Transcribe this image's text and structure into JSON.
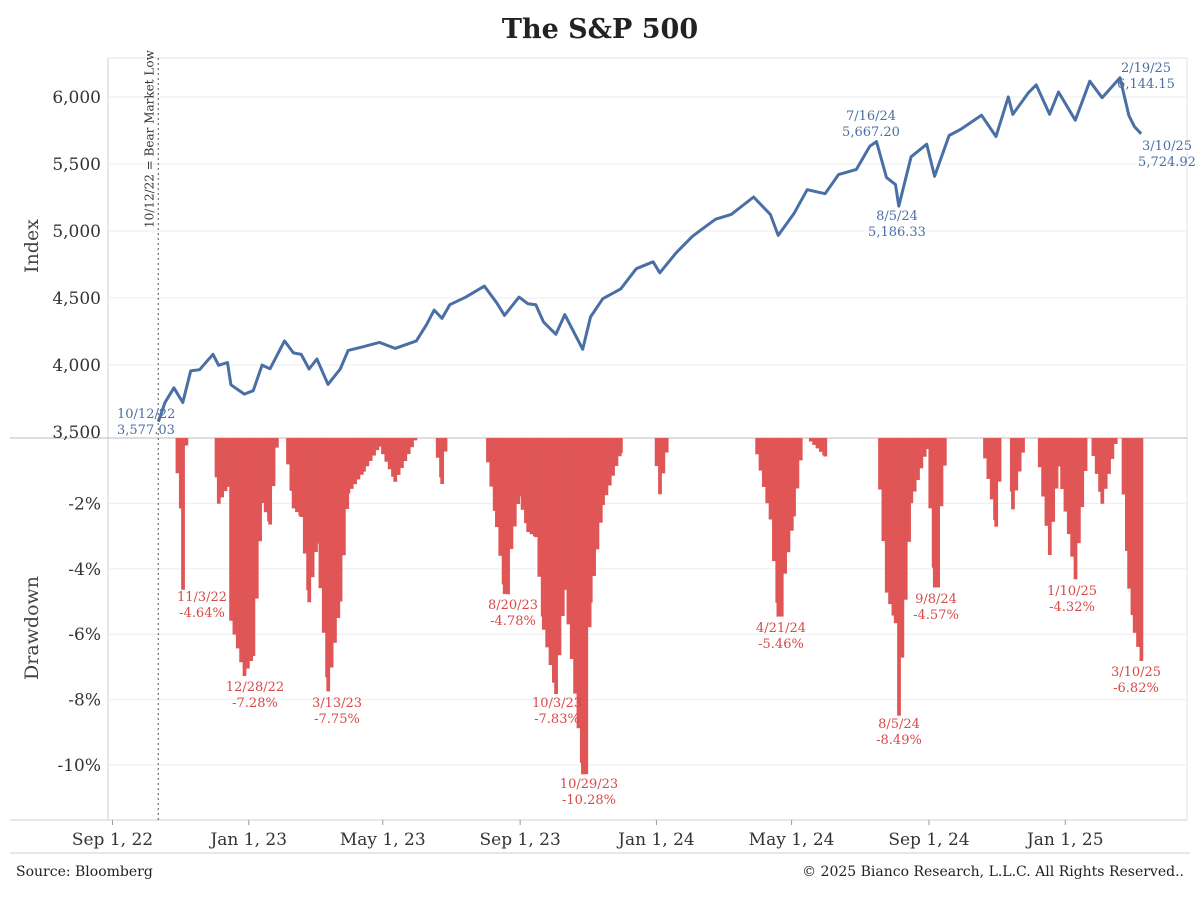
{
  "page": {
    "title": "The S&P 500",
    "source": "Source: Bloomberg",
    "copyright": "© 2025 Bianco Research, L.L.C. All Rights Reserved.."
  },
  "colors": {
    "index_line": "#4a6fa5",
    "drawdown": "#e05555",
    "annotation_red": "#d94848",
    "annotation_blue": "#4a6fa5"
  },
  "chart_data": [
    {
      "type": "line",
      "title": "The S&P 500",
      "ylabel": "Index",
      "xlabel": "",
      "ylim": [
        3500,
        6300
      ],
      "yticks": [
        3500,
        4000,
        4500,
        5000,
        5500,
        6000
      ],
      "ytick_labels": [
        "3,500",
        "4,000",
        "4,500",
        "5,000",
        "5,500",
        "6,000"
      ],
      "x_ticks": [
        "Sep 1, 22",
        "Jan 1, 23",
        "May 1, 23",
        "Sep 1, 23",
        "Jan 1, 24",
        "May 1, 24",
        "Sep 1, 24",
        "Jan 1, 25"
      ],
      "x_tick_dates": [
        "2022-09-01",
        "2023-01-01",
        "2023-05-01",
        "2023-09-01",
        "2024-01-01",
        "2024-05-01",
        "2024-09-01",
        "2025-01-01"
      ],
      "xlim": [
        "2022-08-28",
        "2025-04-20"
      ],
      "series": [
        {
          "points": [
            [
              "2022-10-12",
              3577
            ],
            [
              "2022-10-18",
              3720
            ],
            [
              "2022-10-26",
              3830
            ],
            [
              "2022-11-03",
              3720
            ],
            [
              "2022-11-10",
              3956
            ],
            [
              "2022-11-18",
              3965
            ],
            [
              "2022-11-30",
              4080
            ],
            [
              "2022-12-05",
              3998
            ],
            [
              "2022-12-13",
              4019
            ],
            [
              "2022-12-16",
              3852
            ],
            [
              "2022-12-28",
              3783
            ],
            [
              "2023-01-05",
              3808
            ],
            [
              "2023-01-13",
              3999
            ],
            [
              "2023-01-20",
              3972
            ],
            [
              "2023-02-02",
              4180
            ],
            [
              "2023-02-10",
              4090
            ],
            [
              "2023-02-17",
              4079
            ],
            [
              "2023-02-24",
              3970
            ],
            [
              "2023-03-03",
              4045
            ],
            [
              "2023-03-13",
              3855
            ],
            [
              "2023-03-24",
              3971
            ],
            [
              "2023-03-31",
              4109
            ],
            [
              "2023-04-14",
              4137
            ],
            [
              "2023-04-28",
              4169
            ],
            [
              "2023-05-12",
              4124
            ],
            [
              "2023-05-31",
              4180
            ],
            [
              "2023-06-09",
              4298
            ],
            [
              "2023-06-16",
              4410
            ],
            [
              "2023-06-23",
              4348
            ],
            [
              "2023-06-30",
              4450
            ],
            [
              "2023-07-14",
              4505
            ],
            [
              "2023-07-31",
              4589
            ],
            [
              "2023-08-11",
              4464
            ],
            [
              "2023-08-18",
              4370
            ],
            [
              "2023-08-31",
              4507
            ],
            [
              "2023-09-08",
              4457
            ],
            [
              "2023-09-15",
              4450
            ],
            [
              "2023-09-22",
              4320
            ],
            [
              "2023-10-03",
              4229
            ],
            [
              "2023-10-11",
              4376
            ],
            [
              "2023-10-27",
              4117
            ],
            [
              "2023-11-03",
              4358
            ],
            [
              "2023-11-14",
              4495
            ],
            [
              "2023-11-30",
              4568
            ],
            [
              "2023-12-14",
              4719
            ],
            [
              "2023-12-29",
              4770
            ],
            [
              "2024-01-04",
              4688
            ],
            [
              "2024-01-19",
              4840
            ],
            [
              "2024-02-02",
              4958
            ],
            [
              "2024-02-12",
              5021
            ],
            [
              "2024-02-23",
              5088
            ],
            [
              "2024-03-08",
              5124
            ],
            [
              "2024-03-28",
              5254
            ],
            [
              "2024-04-12",
              5123
            ],
            [
              "2024-04-19",
              4967
            ],
            [
              "2024-05-03",
              5128
            ],
            [
              "2024-05-15",
              5308
            ],
            [
              "2024-05-31",
              5278
            ],
            [
              "2024-06-12",
              5421
            ],
            [
              "2024-06-28",
              5460
            ],
            [
              "2024-07-10",
              5633
            ],
            [
              "2024-07-16",
              5667
            ],
            [
              "2024-07-25",
              5399
            ],
            [
              "2024-08-02",
              5346
            ],
            [
              "2024-08-05",
              5186
            ],
            [
              "2024-08-16",
              5554
            ],
            [
              "2024-08-30",
              5648
            ],
            [
              "2024-09-06",
              5408
            ],
            [
              "2024-09-19",
              5713
            ],
            [
              "2024-09-30",
              5762
            ],
            [
              "2024-10-18",
              5864
            ],
            [
              "2024-10-31",
              5705
            ],
            [
              "2024-11-11",
              6001
            ],
            [
              "2024-11-15",
              5870
            ],
            [
              "2024-11-29",
              6032
            ],
            [
              "2024-12-06",
              6090
            ],
            [
              "2024-12-18",
              5872
            ],
            [
              "2024-12-26",
              6037
            ],
            [
              "2025-01-10",
              5827
            ],
            [
              "2025-01-23",
              6118
            ],
            [
              "2025-02-03",
              5995
            ],
            [
              "2025-02-19",
              6144
            ],
            [
              "2025-02-27",
              5861
            ],
            [
              "2025-03-04",
              5778
            ],
            [
              "2025-03-10",
              5725
            ]
          ]
        }
      ],
      "vline": {
        "date": "2022-10-12",
        "label": "10/12/22 = Bear Market Low"
      },
      "annotations": [
        {
          "date": "10/12/22",
          "value": "3,577.03"
        },
        {
          "date": "7/16/24",
          "value": "5,667.20"
        },
        {
          "date": "8/5/24",
          "value": "5,186.33"
        },
        {
          "date": "2/19/25",
          "value": "6,144.15"
        },
        {
          "date": "3/10/25",
          "value": "5,724.92"
        }
      ]
    },
    {
      "type": "bar",
      "ylabel": "Drawdown",
      "ylim": [
        -11.5,
        0
      ],
      "yticks": [
        -2,
        -4,
        -6,
        -8,
        -10
      ],
      "ytick_labels": [
        "-2%",
        "-4%",
        "-6%",
        "-8%",
        "-10%"
      ],
      "troughs": [
        [
          "2022-11-03",
          -4.64
        ],
        [
          "2022-12-28",
          -7.28
        ],
        [
          "2023-03-13",
          -7.75
        ],
        [
          "2023-08-20",
          -4.78
        ],
        [
          "2023-10-03",
          -7.83
        ],
        [
          "2023-10-29",
          -10.28
        ],
        [
          "2024-04-21",
          -5.46
        ],
        [
          "2024-08-05",
          -8.49
        ],
        [
          "2024-09-08",
          -4.57
        ],
        [
          "2025-01-10",
          -4.32
        ],
        [
          "2025-03-10",
          -6.82
        ]
      ],
      "annotations": [
        {
          "date": "11/3/22",
          "value": "-4.64%"
        },
        {
          "date": "12/28/22",
          "value": "-7.28%"
        },
        {
          "date": "3/13/23",
          "value": "-7.75%"
        },
        {
          "date": "8/20/23",
          "value": "-4.78%"
        },
        {
          "date": "10/3/23",
          "value": "-7.83%"
        },
        {
          "date": "10/29/23",
          "value": "-10.28%"
        },
        {
          "date": "4/21/24",
          "value": "-5.46%"
        },
        {
          "date": "8/5/24",
          "value": "-8.49%"
        },
        {
          "date": "9/8/24",
          "value": "-4.57%"
        },
        {
          "date": "1/10/25",
          "value": "-4.32%"
        },
        {
          "date": "3/10/25",
          "value": "-6.82%"
        }
      ]
    }
  ]
}
